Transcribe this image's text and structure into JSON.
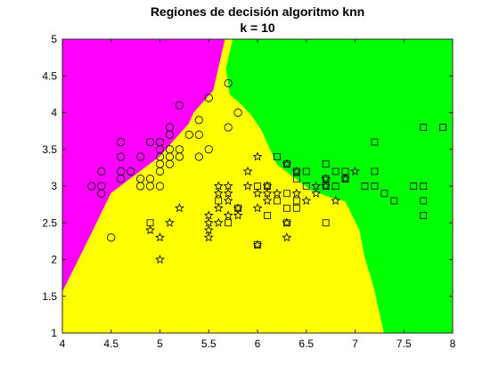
{
  "chart_data": {
    "type": "scatter",
    "title": "Regiones de decisión algoritmo knn",
    "subtitle": "k = 10",
    "xlabel": "",
    "ylabel": "",
    "xlim": [
      4,
      8
    ],
    "ylim": [
      1,
      5
    ],
    "xticks": [
      "4",
      "4.5",
      "5",
      "5.5",
      "6",
      "6.5",
      "7",
      "7.5",
      "8"
    ],
    "yticks": [
      "1",
      "1.5",
      "2",
      "2.5",
      "3",
      "3.5",
      "4",
      "4.5",
      "5"
    ],
    "grid": false,
    "legend": "none",
    "region_colors": {
      "magenta": "#ff00ff",
      "yellow": "#ffff00",
      "green": "#00ff00"
    },
    "regions": [
      {
        "color": "magenta",
        "polygon": [
          [
            4,
            5
          ],
          [
            5.67,
            5
          ],
          [
            5.55,
            4.3
          ],
          [
            5.35,
            4.0
          ],
          [
            5.3,
            3.85
          ],
          [
            5.2,
            3.7
          ],
          [
            5.1,
            3.55
          ],
          [
            5.0,
            3.4
          ],
          [
            4.9,
            3.3
          ],
          [
            4.8,
            3.2
          ],
          [
            4.65,
            3.05
          ],
          [
            4.5,
            2.9
          ],
          [
            4.3,
            2.35
          ],
          [
            4,
            1.55
          ]
        ]
      },
      {
        "color": "yellow",
        "polygon": [
          [
            4,
            1.55
          ],
          [
            4.3,
            2.35
          ],
          [
            4.5,
            2.9
          ],
          [
            4.65,
            3.05
          ],
          [
            4.8,
            3.2
          ],
          [
            4.9,
            3.3
          ],
          [
            5.0,
            3.4
          ],
          [
            5.1,
            3.55
          ],
          [
            5.2,
            3.7
          ],
          [
            5.3,
            3.85
          ],
          [
            5.35,
            4.0
          ],
          [
            5.55,
            4.3
          ],
          [
            5.67,
            5
          ],
          [
            5.75,
            5
          ],
          [
            5.68,
            4.6
          ],
          [
            5.72,
            4.25
          ],
          [
            5.85,
            4.1
          ],
          [
            5.95,
            3.95
          ],
          [
            6.05,
            3.75
          ],
          [
            6.1,
            3.6
          ],
          [
            6.15,
            3.45
          ],
          [
            6.2,
            3.3
          ],
          [
            6.4,
            3.1
          ],
          [
            6.55,
            2.95
          ],
          [
            6.75,
            2.85
          ],
          [
            6.9,
            2.8
          ],
          [
            7.05,
            2.4
          ],
          [
            7.1,
            2.05
          ],
          [
            7.2,
            1.6
          ],
          [
            7.3,
            1.0
          ],
          [
            4,
            1.0
          ]
        ]
      },
      {
        "color": "green",
        "polygon": [
          [
            5.75,
            5
          ],
          [
            8,
            5
          ],
          [
            8,
            1
          ],
          [
            7.3,
            1.0
          ],
          [
            7.2,
            1.6
          ],
          [
            7.1,
            2.05
          ],
          [
            7.05,
            2.4
          ],
          [
            6.9,
            2.8
          ],
          [
            6.75,
            2.85
          ],
          [
            6.55,
            2.95
          ],
          [
            6.4,
            3.1
          ],
          [
            6.2,
            3.3
          ],
          [
            6.15,
            3.45
          ],
          [
            6.1,
            3.6
          ],
          [
            6.05,
            3.75
          ],
          [
            5.95,
            3.95
          ],
          [
            5.85,
            4.1
          ],
          [
            5.72,
            4.25
          ],
          [
            5.68,
            4.6
          ]
        ]
      }
    ],
    "series": [
      {
        "marker": "circle",
        "points": [
          [
            4.3,
            3.0
          ],
          [
            4.4,
            2.9
          ],
          [
            4.4,
            3.0
          ],
          [
            4.4,
            3.2
          ],
          [
            4.5,
            2.3
          ],
          [
            4.6,
            3.1
          ],
          [
            4.6,
            3.2
          ],
          [
            4.6,
            3.4
          ],
          [
            4.6,
            3.6
          ],
          [
            4.7,
            3.2
          ],
          [
            4.8,
            3.0
          ],
          [
            4.8,
            3.1
          ],
          [
            4.8,
            3.4
          ],
          [
            4.9,
            3.0
          ],
          [
            4.9,
            3.1
          ],
          [
            4.9,
            3.6
          ],
          [
            5.0,
            3.0
          ],
          [
            5.0,
            3.2
          ],
          [
            5.0,
            3.3
          ],
          [
            5.0,
            3.4
          ],
          [
            5.0,
            3.5
          ],
          [
            5.0,
            3.6
          ],
          [
            5.1,
            3.3
          ],
          [
            5.1,
            3.4
          ],
          [
            5.1,
            3.5
          ],
          [
            5.1,
            3.7
          ],
          [
            5.1,
            3.8
          ],
          [
            5.2,
            3.4
          ],
          [
            5.2,
            3.5
          ],
          [
            5.2,
            4.1
          ],
          [
            5.3,
            3.7
          ],
          [
            5.4,
            3.4
          ],
          [
            5.4,
            3.7
          ],
          [
            5.4,
            3.9
          ],
          [
            5.5,
            3.5
          ],
          [
            5.5,
            4.2
          ],
          [
            5.7,
            3.8
          ],
          [
            5.7,
            4.4
          ],
          [
            5.8,
            4.0
          ]
        ]
      },
      {
        "marker": "star",
        "points": [
          [
            4.9,
            2.4
          ],
          [
            5.0,
            2.0
          ],
          [
            5.0,
            2.3
          ],
          [
            5.1,
            2.5
          ],
          [
            5.2,
            2.7
          ],
          [
            5.5,
            2.3
          ],
          [
            5.5,
            2.4
          ],
          [
            5.5,
            2.5
          ],
          [
            5.5,
            2.6
          ],
          [
            5.6,
            2.5
          ],
          [
            5.6,
            2.7
          ],
          [
            5.6,
            2.9
          ],
          [
            5.6,
            3.0
          ],
          [
            5.7,
            2.6
          ],
          [
            5.7,
            2.8
          ],
          [
            5.7,
            2.9
          ],
          [
            5.7,
            3.0
          ],
          [
            5.8,
            2.6
          ],
          [
            5.8,
            2.7
          ],
          [
            5.9,
            3.0
          ],
          [
            5.9,
            3.2
          ],
          [
            6.0,
            2.2
          ],
          [
            6.0,
            2.7
          ],
          [
            6.0,
            2.9
          ],
          [
            6.0,
            3.4
          ],
          [
            6.1,
            2.8
          ],
          [
            6.1,
            2.9
          ],
          [
            6.1,
            3.0
          ],
          [
            6.2,
            2.9
          ],
          [
            6.3,
            2.3
          ],
          [
            6.3,
            2.5
          ],
          [
            6.3,
            3.3
          ],
          [
            6.4,
            2.9
          ],
          [
            6.4,
            3.2
          ],
          [
            6.5,
            2.8
          ],
          [
            6.6,
            2.9
          ],
          [
            6.6,
            3.0
          ],
          [
            6.7,
            3.0
          ],
          [
            6.7,
            3.1
          ],
          [
            6.8,
            2.8
          ],
          [
            6.9,
            3.1
          ],
          [
            7.0,
            3.2
          ]
        ]
      },
      {
        "marker": "square",
        "points": [
          [
            4.9,
            2.5
          ],
          [
            5.6,
            2.8
          ],
          [
            5.7,
            2.5
          ],
          [
            5.8,
            2.7
          ],
          [
            6.0,
            2.2
          ],
          [
            6.0,
            3.0
          ],
          [
            6.1,
            2.6
          ],
          [
            6.1,
            3.0
          ],
          [
            6.2,
            2.8
          ],
          [
            6.2,
            3.4
          ],
          [
            6.3,
            2.5
          ],
          [
            6.3,
            2.7
          ],
          [
            6.3,
            2.9
          ],
          [
            6.3,
            3.3
          ],
          [
            6.4,
            2.7
          ],
          [
            6.4,
            2.8
          ],
          [
            6.4,
            3.1
          ],
          [
            6.4,
            3.2
          ],
          [
            6.5,
            3.0
          ],
          [
            6.5,
            3.2
          ],
          [
            6.7,
            2.5
          ],
          [
            6.7,
            3.0
          ],
          [
            6.7,
            3.1
          ],
          [
            6.7,
            3.3
          ],
          [
            6.8,
            3.0
          ],
          [
            6.8,
            3.2
          ],
          [
            6.9,
            3.1
          ],
          [
            6.9,
            3.2
          ],
          [
            7.1,
            3.0
          ],
          [
            7.2,
            3.0
          ],
          [
            7.2,
            3.2
          ],
          [
            7.2,
            3.6
          ],
          [
            7.3,
            2.9
          ],
          [
            7.4,
            2.8
          ],
          [
            7.6,
            3.0
          ],
          [
            7.7,
            2.6
          ],
          [
            7.7,
            2.8
          ],
          [
            7.7,
            3.0
          ],
          [
            7.7,
            3.8
          ],
          [
            7.9,
            3.8
          ]
        ]
      }
    ]
  }
}
